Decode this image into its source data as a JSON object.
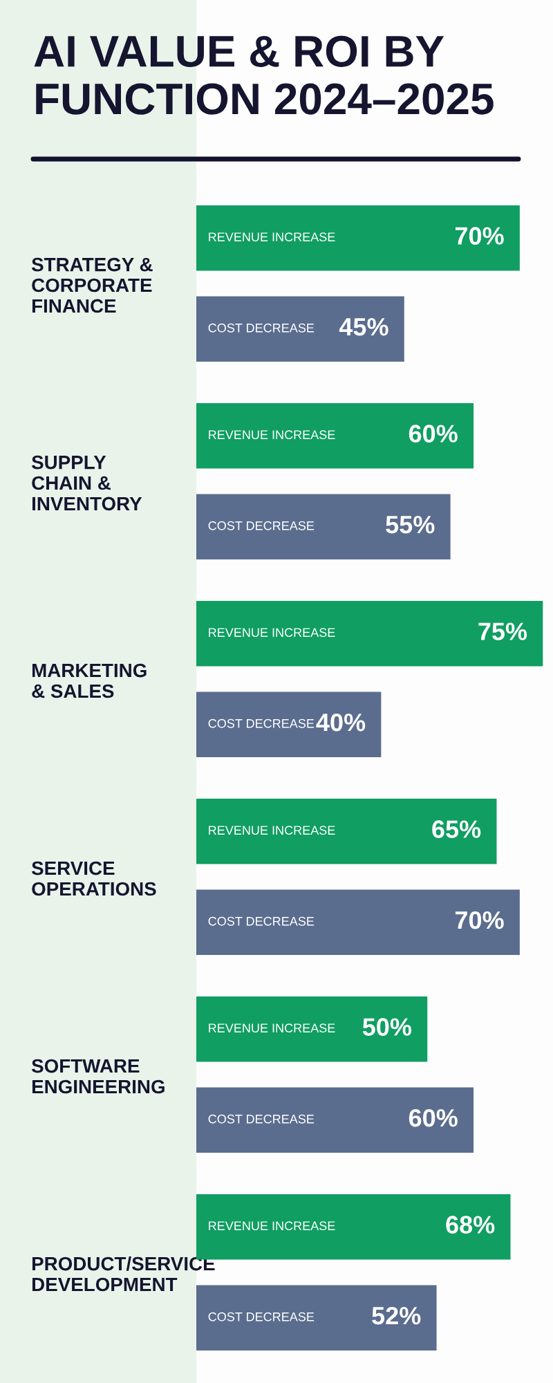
{
  "chart_data": {
    "type": "bar",
    "orientation": "horizontal",
    "title": "AI VALUE & ROI BY FUNCTION 2024–2025",
    "categories": [
      "STRATEGY &\nCORPORATE\nFINANCE",
      "SUPPLY\nCHAIN &\nINVENTORY",
      "MARKETING\n& SALES",
      "SERVICE\nOPERATIONS",
      "SOFTWARE\nENGINEERING",
      "PRODUCT/SERVICE\nDEVELOPMENT"
    ],
    "series": [
      {
        "name": "REVENUE INCREASE",
        "color": "#109e62",
        "values": [
          70,
          60,
          75,
          65,
          50,
          68
        ],
        "value_labels": [
          "70%",
          "60%",
          "75%",
          "65%",
          "50%",
          "68%"
        ]
      },
      {
        "name": "COST DECREASE",
        "color": "#5b6d8e",
        "values": [
          45,
          55,
          40,
          70,
          60,
          52
        ],
        "value_labels": [
          "45%",
          "55%",
          "40%",
          "70%",
          "60%",
          "52%"
        ]
      }
    ],
    "xlim": [
      0,
      76
    ],
    "tick_labels": "y",
    "legend": false,
    "grid": false
  }
}
